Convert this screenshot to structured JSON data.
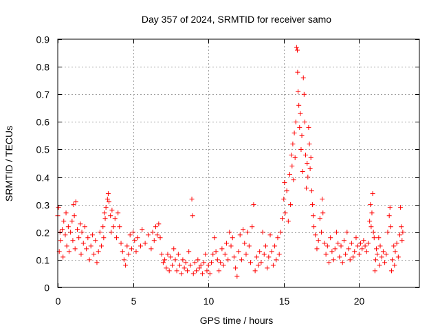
{
  "chart_data": {
    "type": "scatter",
    "title": "Day 357 of 2024, SRMTID for receiver samo",
    "xlabel": "GPS time / hours",
    "ylabel": "SRMTID / TECUs",
    "xlim": [
      0,
      24
    ],
    "ylim": [
      0,
      0.9
    ],
    "xticks": [
      0,
      5,
      10,
      15,
      20
    ],
    "yticks": [
      0,
      0.1,
      0.2,
      0.3,
      0.4,
      0.5,
      0.6,
      0.7,
      0.8,
      0.9
    ],
    "xtick_labels": [
      "0",
      "5",
      "10",
      "15",
      "20"
    ],
    "ytick_labels": [
      "0",
      "0.1",
      "0.2",
      "0.3",
      "0.4",
      "0.5",
      "0.6",
      "0.7",
      "0.8",
      "0.9"
    ],
    "grid": true,
    "marker": "+",
    "color": "#ff0000",
    "series": [
      {
        "name": "SRMTID",
        "points": [
          [
            0.0,
            0.26
          ],
          [
            0.05,
            0.29
          ],
          [
            0.1,
            0.13
          ],
          [
            0.15,
            0.2
          ],
          [
            0.2,
            0.17
          ],
          [
            0.3,
            0.21
          ],
          [
            0.35,
            0.11
          ],
          [
            0.4,
            0.24
          ],
          [
            0.5,
            0.19
          ],
          [
            0.55,
            0.27
          ],
          [
            0.6,
            0.15
          ],
          [
            0.7,
            0.22
          ],
          [
            0.75,
            0.13
          ],
          [
            0.85,
            0.2
          ],
          [
            0.95,
            0.24
          ],
          [
            1.0,
            0.17
          ],
          [
            1.05,
            0.3
          ],
          [
            1.1,
            0.26
          ],
          [
            1.15,
            0.14
          ],
          [
            1.2,
            0.31
          ],
          [
            1.3,
            0.21
          ],
          [
            1.4,
            0.18
          ],
          [
            1.5,
            0.23
          ],
          [
            1.55,
            0.12
          ],
          [
            1.6,
            0.2
          ],
          [
            1.7,
            0.16
          ],
          [
            1.8,
            0.22
          ],
          [
            1.9,
            0.14
          ],
          [
            2.0,
            0.18
          ],
          [
            2.1,
            0.1
          ],
          [
            2.2,
            0.15
          ],
          [
            2.3,
            0.19
          ],
          [
            2.4,
            0.12
          ],
          [
            2.5,
            0.17
          ],
          [
            2.6,
            0.09
          ],
          [
            2.7,
            0.13
          ],
          [
            2.8,
            0.2
          ],
          [
            2.9,
            0.15
          ],
          [
            3.0,
            0.22
          ],
          [
            3.05,
            0.18
          ],
          [
            3.1,
            0.27
          ],
          [
            3.15,
            0.25
          ],
          [
            3.2,
            0.29
          ],
          [
            3.3,
            0.32
          ],
          [
            3.35,
            0.34
          ],
          [
            3.4,
            0.31
          ],
          [
            3.5,
            0.26
          ],
          [
            3.55,
            0.2
          ],
          [
            3.6,
            0.28
          ],
          [
            3.7,
            0.22
          ],
          [
            3.8,
            0.25
          ],
          [
            3.9,
            0.18
          ],
          [
            4.0,
            0.27
          ],
          [
            4.1,
            0.22
          ],
          [
            4.2,
            0.16
          ],
          [
            4.3,
            0.13
          ],
          [
            4.4,
            0.1
          ],
          [
            4.5,
            0.08
          ],
          [
            4.6,
            0.15
          ],
          [
            4.7,
            0.12
          ],
          [
            4.8,
            0.19
          ],
          [
            4.9,
            0.14
          ],
          [
            5.0,
            0.2
          ],
          [
            5.1,
            0.17
          ],
          [
            5.2,
            0.13
          ],
          [
            5.3,
            0.18
          ],
          [
            5.5,
            0.15
          ],
          [
            5.6,
            0.21
          ],
          [
            5.8,
            0.16
          ],
          [
            6.0,
            0.19
          ],
          [
            6.2,
            0.14
          ],
          [
            6.3,
            0.2
          ],
          [
            6.4,
            0.17
          ],
          [
            6.5,
            0.22
          ],
          [
            6.6,
            0.19
          ],
          [
            6.7,
            0.23
          ],
          [
            6.8,
            0.18
          ],
          [
            6.9,
            0.12
          ],
          [
            7.0,
            0.09
          ],
          [
            7.1,
            0.1
          ],
          [
            7.2,
            0.07
          ],
          [
            7.3,
            0.12
          ],
          [
            7.4,
            0.06
          ],
          [
            7.5,
            0.11
          ],
          [
            7.6,
            0.08
          ],
          [
            7.7,
            0.14
          ],
          [
            7.8,
            0.1
          ],
          [
            7.9,
            0.06
          ],
          [
            8.0,
            0.12
          ],
          [
            8.1,
            0.08
          ],
          [
            8.2,
            0.05
          ],
          [
            8.3,
            0.1
          ],
          [
            8.4,
            0.07
          ],
          [
            8.5,
            0.09
          ],
          [
            8.6,
            0.06
          ],
          [
            8.7,
            0.13
          ],
          [
            8.8,
            0.08
          ],
          [
            8.9,
            0.32
          ],
          [
            8.95,
            0.26
          ],
          [
            9.0,
            0.05
          ],
          [
            9.1,
            0.09
          ],
          [
            9.2,
            0.06
          ],
          [
            9.3,
            0.1
          ],
          [
            9.4,
            0.07
          ],
          [
            9.5,
            0.08
          ],
          [
            9.6,
            0.05
          ],
          [
            9.7,
            0.09
          ],
          [
            9.8,
            0.12
          ],
          [
            9.9,
            0.06
          ],
          [
            10.0,
            0.08
          ],
          [
            10.1,
            0.05
          ],
          [
            10.2,
            0.09
          ],
          [
            10.3,
            0.12
          ],
          [
            10.4,
            0.18
          ],
          [
            10.5,
            0.13
          ],
          [
            10.6,
            0.1
          ],
          [
            10.7,
            0.06
          ],
          [
            10.8,
            0.09
          ],
          [
            10.9,
            0.14
          ],
          [
            11.0,
            0.08
          ],
          [
            11.1,
            0.12
          ],
          [
            11.2,
            0.16
          ],
          [
            11.3,
            0.1
          ],
          [
            11.4,
            0.2
          ],
          [
            11.5,
            0.15
          ],
          [
            11.6,
            0.18
          ],
          [
            11.7,
            0.11
          ],
          [
            11.8,
            0.07
          ],
          [
            11.9,
            0.04
          ],
          [
            12.0,
            0.13
          ],
          [
            12.1,
            0.19
          ],
          [
            12.2,
            0.1
          ],
          [
            12.3,
            0.21
          ],
          [
            12.4,
            0.16
          ],
          [
            12.5,
            0.12
          ],
          [
            12.6,
            0.2
          ],
          [
            12.7,
            0.15
          ],
          [
            12.8,
            0.09
          ],
          [
            12.9,
            0.22
          ],
          [
            13.0,
            0.3
          ],
          [
            13.1,
            0.06
          ],
          [
            13.2,
            0.11
          ],
          [
            13.3,
            0.08
          ],
          [
            13.4,
            0.13
          ],
          [
            13.5,
            0.09
          ],
          [
            13.6,
            0.2
          ],
          [
            13.7,
            0.12
          ],
          [
            13.8,
            0.15
          ],
          [
            13.9,
            0.07
          ],
          [
            14.0,
            0.11
          ],
          [
            14.1,
            0.19
          ],
          [
            14.2,
            0.13
          ],
          [
            14.3,
            0.08
          ],
          [
            14.4,
            0.15
          ],
          [
            14.5,
            0.1
          ],
          [
            14.6,
            0.18
          ],
          [
            14.7,
            0.12
          ],
          [
            14.8,
            0.2
          ],
          [
            14.9,
            0.25
          ],
          [
            15.0,
            0.32
          ],
          [
            15.05,
            0.38
          ],
          [
            15.1,
            0.27
          ],
          [
            15.2,
            0.35
          ],
          [
            15.3,
            0.24
          ],
          [
            15.4,
            0.41
          ],
          [
            15.45,
            0.3
          ],
          [
            15.5,
            0.48
          ],
          [
            15.55,
            0.44
          ],
          [
            15.6,
            0.52
          ],
          [
            15.65,
            0.39
          ],
          [
            15.7,
            0.56
          ],
          [
            15.75,
            0.47
          ],
          [
            15.8,
            0.6
          ],
          [
            15.85,
            0.87
          ],
          [
            15.9,
            0.86
          ],
          [
            15.92,
            0.78
          ],
          [
            15.95,
            0.71
          ],
          [
            16.0,
            0.66
          ],
          [
            16.05,
            0.58
          ],
          [
            16.1,
            0.63
          ],
          [
            16.15,
            0.5
          ],
          [
            16.2,
            0.55
          ],
          [
            16.25,
            0.42
          ],
          [
            16.3,
            0.76
          ],
          [
            16.35,
            0.7
          ],
          [
            16.4,
            0.6
          ],
          [
            16.45,
            0.48
          ],
          [
            16.5,
            0.36
          ],
          [
            16.55,
            0.45
          ],
          [
            16.6,
            0.4
          ],
          [
            16.65,
            0.58
          ],
          [
            16.7,
            0.52
          ],
          [
            16.75,
            0.43
          ],
          [
            16.8,
            0.47
          ],
          [
            16.85,
            0.35
          ],
          [
            16.9,
            0.3
          ],
          [
            16.95,
            0.26
          ],
          [
            17.0,
            0.22
          ],
          [
            17.1,
            0.19
          ],
          [
            17.2,
            0.14
          ],
          [
            17.3,
            0.17
          ],
          [
            17.4,
            0.25
          ],
          [
            17.5,
            0.2
          ],
          [
            17.55,
            0.32
          ],
          [
            17.6,
            0.27
          ],
          [
            17.7,
            0.16
          ],
          [
            17.8,
            0.12
          ],
          [
            17.9,
            0.15
          ],
          [
            18.0,
            0.09
          ],
          [
            18.1,
            0.18
          ],
          [
            18.2,
            0.13
          ],
          [
            18.3,
            0.1
          ],
          [
            18.4,
            0.14
          ],
          [
            18.5,
            0.2
          ],
          [
            18.6,
            0.16
          ],
          [
            18.7,
            0.11
          ],
          [
            18.8,
            0.15
          ],
          [
            18.9,
            0.09
          ],
          [
            19.0,
            0.17
          ],
          [
            19.1,
            0.12
          ],
          [
            19.2,
            0.2
          ],
          [
            19.3,
            0.14
          ],
          [
            19.4,
            0.1
          ],
          [
            19.5,
            0.16
          ],
          [
            19.6,
            0.11
          ],
          [
            19.7,
            0.13
          ],
          [
            19.8,
            0.18
          ],
          [
            19.9,
            0.15
          ],
          [
            20.0,
            0.12
          ],
          [
            20.1,
            0.16
          ],
          [
            20.2,
            0.14
          ],
          [
            20.3,
            0.17
          ],
          [
            20.4,
            0.15
          ],
          [
            20.5,
            0.13
          ],
          [
            20.6,
            0.16
          ],
          [
            20.7,
            0.24
          ],
          [
            20.75,
            0.3
          ],
          [
            20.8,
            0.22
          ],
          [
            20.85,
            0.27
          ],
          [
            20.9,
            0.34
          ],
          [
            20.95,
            0.2
          ],
          [
            21.0,
            0.18
          ],
          [
            21.05,
            0.06
          ],
          [
            21.1,
            0.1
          ],
          [
            21.15,
            0.14
          ],
          [
            21.2,
            0.12
          ],
          [
            21.3,
            0.18
          ],
          [
            21.35,
            0.08
          ],
          [
            21.4,
            0.15
          ],
          [
            21.5,
            0.11
          ],
          [
            21.6,
            0.13
          ],
          [
            21.7,
            0.09
          ],
          [
            21.8,
            0.12
          ],
          [
            21.9,
            0.2
          ],
          [
            22.0,
            0.26
          ],
          [
            22.05,
            0.29
          ],
          [
            22.1,
            0.22
          ],
          [
            22.15,
            0.06
          ],
          [
            22.2,
            0.1
          ],
          [
            22.3,
            0.15
          ],
          [
            22.35,
            0.08
          ],
          [
            22.4,
            0.13
          ],
          [
            22.5,
            0.16
          ],
          [
            22.6,
            0.11
          ],
          [
            22.7,
            0.19
          ],
          [
            22.75,
            0.29
          ],
          [
            22.8,
            0.22
          ],
          [
            22.85,
            0.17
          ],
          [
            22.9,
            0.2
          ]
        ]
      }
    ]
  }
}
